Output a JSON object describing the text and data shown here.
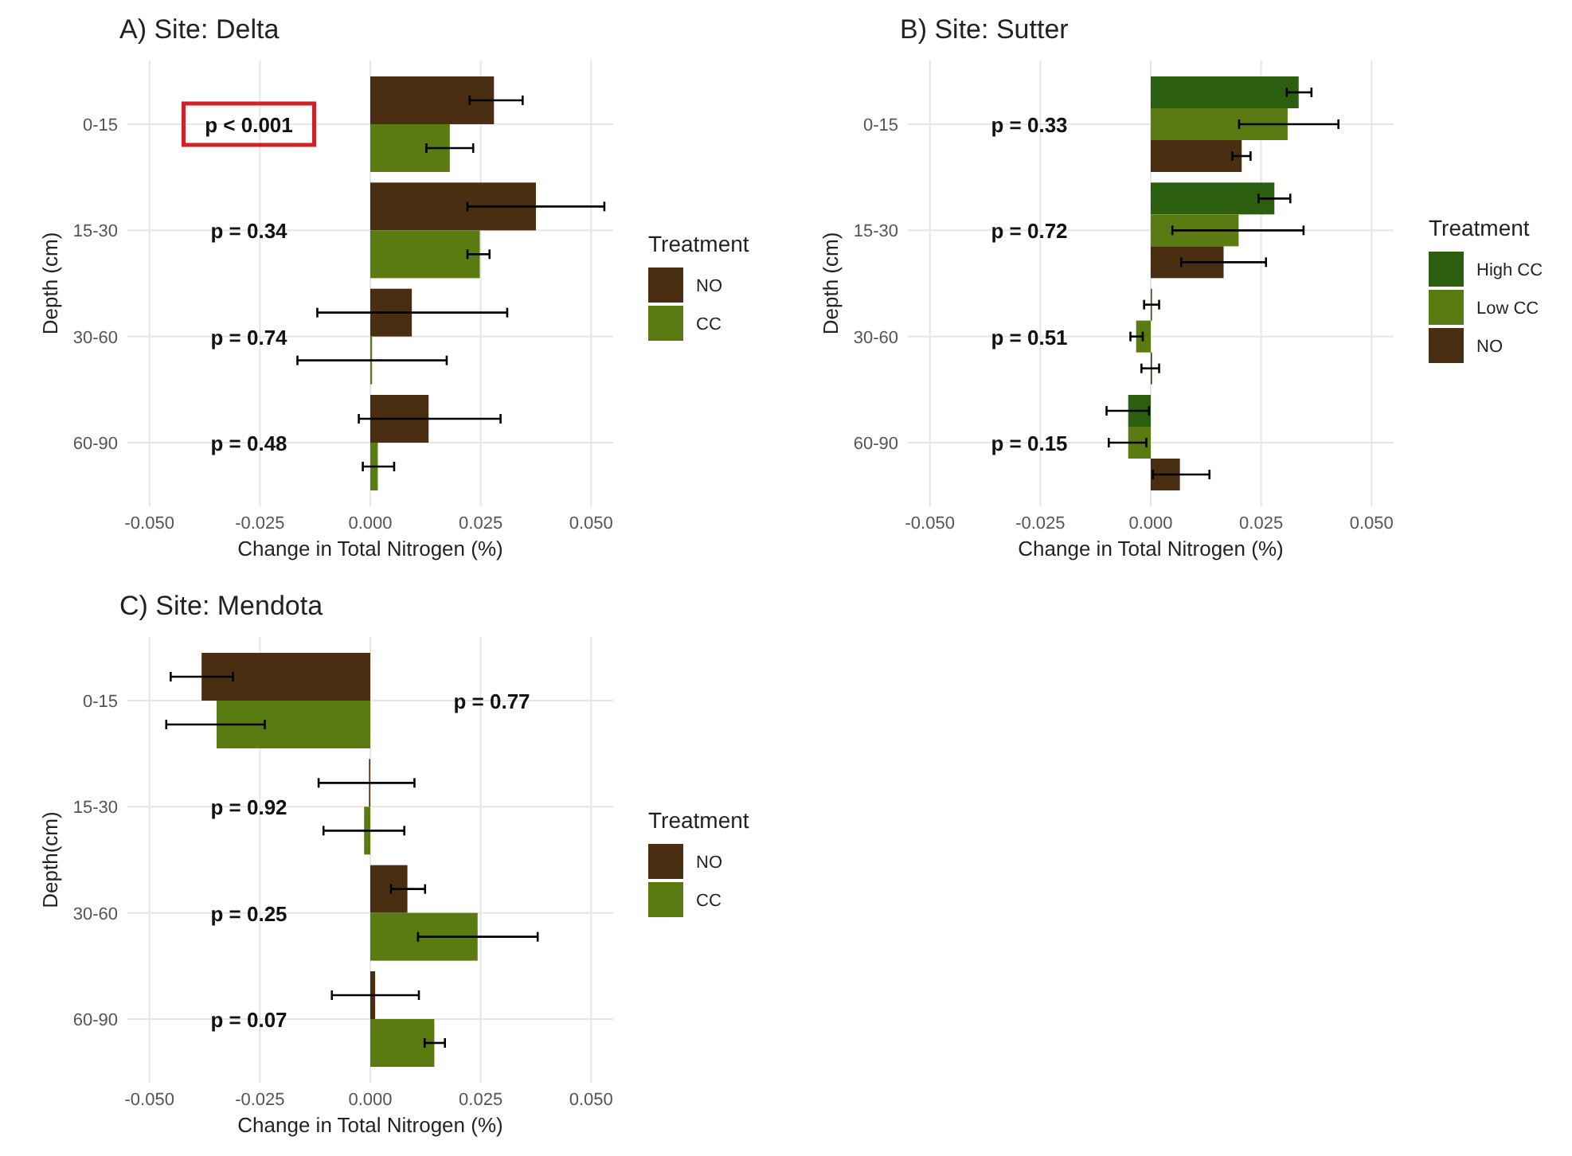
{
  "chart_data": [
    {
      "type": "bar",
      "orientation": "horizontal",
      "title": "A) Site: Delta",
      "xlabel": "Change in Total Nitrogen (%)",
      "ylabel": "Depth (cm)",
      "legend_title": "Treatment",
      "legend": "right",
      "grid": true,
      "categories": [
        "0-15",
        "15-30",
        "30-60",
        "60-90"
      ],
      "xlim": [
        -0.055,
        0.055
      ],
      "xticks": [
        {
          "value": -0.05,
          "label": "-0.050"
        },
        {
          "value": -0.025,
          "label": "-0.025"
        },
        {
          "value": 0,
          "label": "0.000"
        },
        {
          "value": 0.025,
          "label": "0.025"
        },
        {
          "value": 0.05,
          "label": "0.050"
        }
      ],
      "series": [
        {
          "name": "NO",
          "color": "#4a2e12",
          "values": [
            0.028,
            0.0375,
            0.0094,
            0.0132
          ],
          "errors": [
            [
              0.0225,
              0.0345
            ],
            [
              0.022,
              0.053
            ],
            [
              -0.012,
              0.031
            ],
            [
              -0.0026,
              0.0295
            ]
          ]
        },
        {
          "name": "CC",
          "color": "#5a7a12",
          "values": [
            0.018,
            0.0248,
            0.0004,
            0.0017
          ],
          "errors": [
            [
              0.0127,
              0.0233
            ],
            [
              0.022,
              0.027
            ],
            [
              -0.0165,
              0.0173
            ],
            [
              -0.0017,
              0.0054
            ]
          ]
        }
      ],
      "annotations": [
        "p < 0.001",
        "p = 0.34",
        "p = 0.74",
        "p = 0.48"
      ]
    },
    {
      "type": "bar",
      "orientation": "horizontal",
      "title": "B) Site: Sutter",
      "xlabel": "Change in Total Nitrogen (%)",
      "ylabel": "Depth (cm)",
      "legend_title": "Treatment",
      "legend": "right",
      "grid": true,
      "categories": [
        "0-15",
        "15-30",
        "30-60",
        "60-90"
      ],
      "xlim": [
        -0.055,
        0.055
      ],
      "xticks": [
        {
          "value": -0.05,
          "label": "-0.050"
        },
        {
          "value": -0.025,
          "label": "-0.025"
        },
        {
          "value": 0,
          "label": "0.000"
        },
        {
          "value": 0.025,
          "label": "0.025"
        },
        {
          "value": 0.05,
          "label": "0.050"
        }
      ],
      "series": [
        {
          "name": "High CC",
          "color": "#2b5e0f",
          "values": [
            0.0335,
            0.028,
            0,
            -0.0051
          ],
          "errors": [
            [
              0.0308,
              0.0364
            ],
            [
              0.0244,
              0.0316
            ],
            [
              -0.0015,
              0.0019
            ],
            [
              -0.01,
              -0.0004
            ]
          ]
        },
        {
          "name": "Low CC",
          "color": "#5a7a12",
          "values": [
            0.031,
            0.0199,
            -0.0033,
            -0.0051
          ],
          "errors": [
            [
              0.02,
              0.0425
            ],
            [
              0.0049,
              0.0346
            ],
            [
              -0.0046,
              -0.0018
            ],
            [
              -0.0095,
              -0.001
            ]
          ]
        },
        {
          "name": "NO",
          "color": "#4a2e12",
          "values": [
            0.0206,
            0.0165,
            0,
            0.0066
          ],
          "errors": [
            [
              0.0185,
              0.0226
            ],
            [
              0.0069,
              0.0261
            ],
            [
              -0.0021,
              0.0019
            ],
            [
              0.0005,
              0.0133
            ]
          ]
        }
      ],
      "annotations": [
        "p = 0.33",
        "p = 0.72",
        "p = 0.51",
        "p = 0.15"
      ]
    },
    {
      "type": "bar",
      "orientation": "horizontal",
      "title": "C) Site: Mendota",
      "xlabel": "Change in Total Nitrogen (%)",
      "ylabel": "Depth(cm)",
      "legend_title": "Treatment",
      "legend": "right",
      "grid": true,
      "categories": [
        "0-15",
        "15-30",
        "30-60",
        "60-90"
      ],
      "xlim": [
        -0.055,
        0.055
      ],
      "xticks": [
        {
          "value": -0.05,
          "label": "-0.050"
        },
        {
          "value": -0.025,
          "label": "-0.025"
        },
        {
          "value": 0,
          "label": "0.000"
        },
        {
          "value": 0.025,
          "label": "0.025"
        },
        {
          "value": 0.05,
          "label": "0.050"
        }
      ],
      "series": [
        {
          "name": "NO",
          "color": "#4a2e12",
          "values": [
            -0.0382,
            -0.0003,
            0.0084,
            0.0011
          ],
          "errors": [
            [
              -0.0452,
              -0.0311
            ],
            [
              -0.0117,
              0.01
            ],
            [
              0.0047,
              0.0124
            ],
            [
              -0.0087,
              0.011
            ]
          ]
        },
        {
          "name": "CC",
          "color": "#5a7a12",
          "values": [
            -0.0348,
            -0.0014,
            0.0243,
            0.0145
          ],
          "errors": [
            [
              -0.0462,
              -0.0239
            ],
            [
              -0.0106,
              0.0077
            ],
            [
              0.0108,
              0.0379
            ],
            [
              0.0123,
              0.0169
            ]
          ]
        }
      ],
      "annotations": [
        "p = 0.77",
        "p = 0.92",
        "p = 0.25",
        "p = 0.07"
      ]
    }
  ]
}
